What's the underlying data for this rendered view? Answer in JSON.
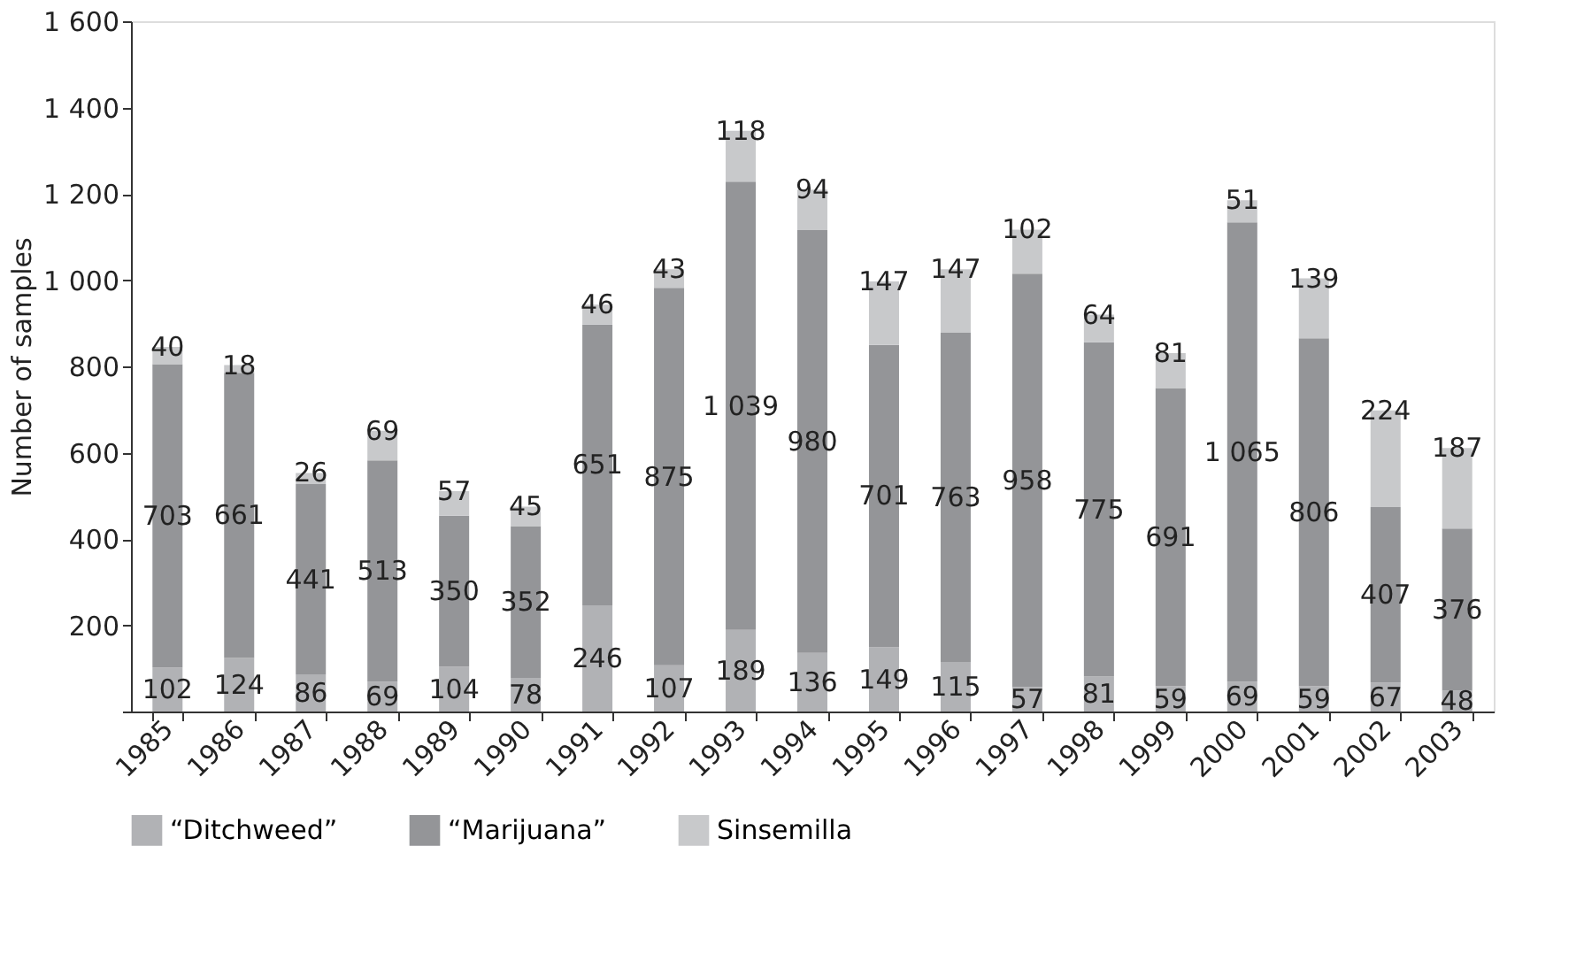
{
  "chart_data": {
    "type": "bar",
    "stacked": true,
    "ylabel": "Number of samples",
    "categories": [
      "1985",
      "1986",
      "1987",
      "1988",
      "1989",
      "1990",
      "1991",
      "1992",
      "1993",
      "1994",
      "1995",
      "1996",
      "1997",
      "1998",
      "1999",
      "2000",
      "2001",
      "2002",
      "2003"
    ],
    "series": [
      {
        "name": "“Ditchweed”",
        "color": "#b1b2b5",
        "values": [
          102,
          124,
          86,
          69,
          104,
          78,
          246,
          107,
          189,
          136,
          149,
          115,
          57,
          81,
          59,
          69,
          59,
          67,
          48
        ],
        "value_labels": [
          "102",
          "124",
          "86",
          "69",
          "104",
          "78",
          "246",
          "107",
          "189",
          "136",
          "149",
          "115",
          "57",
          "81",
          "59",
          "69",
          "59",
          "67",
          "48"
        ]
      },
      {
        "name": "“Marijuana”",
        "color": "#949598",
        "values": [
          703,
          661,
          441,
          513,
          350,
          352,
          651,
          875,
          1039,
          980,
          701,
          763,
          958,
          775,
          691,
          1065,
          806,
          407,
          376
        ],
        "value_labels": [
          "703",
          "661",
          "441",
          "513",
          "350",
          "352",
          "651",
          "875",
          "1 039",
          "980",
          "701",
          "763",
          "958",
          "775",
          "691",
          "1 065",
          "806",
          "407",
          "376"
        ]
      },
      {
        "name": "Sinsemilla",
        "color": "#c8c9cb",
        "values": [
          40,
          18,
          26,
          69,
          57,
          45,
          46,
          43,
          118,
          94,
          147,
          147,
          102,
          64,
          81,
          51,
          139,
          224,
          187
        ],
        "value_labels": [
          "40",
          "18",
          "26",
          "69",
          "57",
          "45",
          "46",
          "43",
          "118",
          "94",
          "147",
          "147",
          "102",
          "64",
          "81",
          "51",
          "139",
          "224",
          "187"
        ]
      }
    ],
    "ylim": [
      0,
      1600
    ],
    "yticks": [
      {
        "value": 0,
        "label": null
      },
      200,
      400,
      600,
      800,
      {
        "value": 1000,
        "label": "1 000"
      },
      {
        "value": 1200,
        "label": "1 200"
      },
      {
        "value": 1400,
        "label": "1 400"
      },
      {
        "value": 1600,
        "label": "1 600"
      }
    ],
    "grid": false,
    "legend": "bottom"
  }
}
